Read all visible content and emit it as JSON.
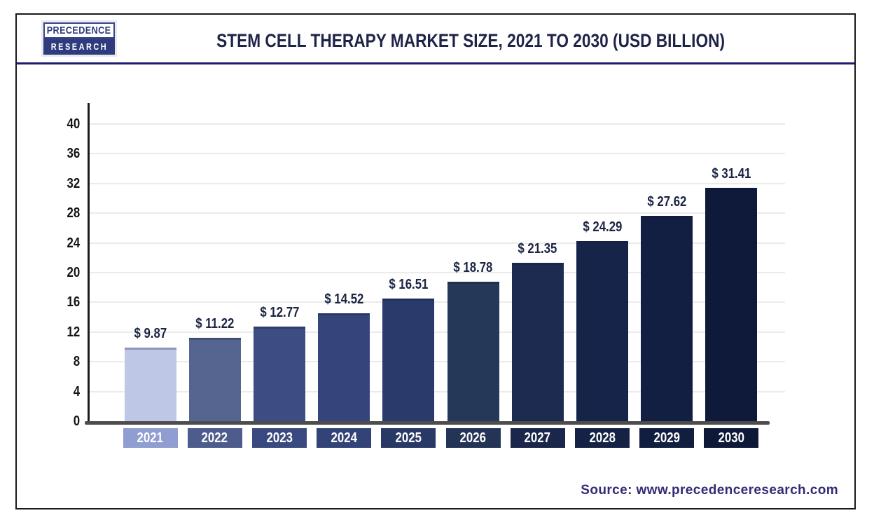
{
  "header": {
    "logo": {
      "line1": "PRECEDENCE",
      "line2": "RESEARCH"
    },
    "title": "STEM CELL THERAPY MARKET SIZE, 2021 TO 2030 (USD BILLION)"
  },
  "footer": {
    "source": "Source: www.precedenceresearch.com"
  },
  "chart_data": {
    "type": "bar",
    "title": "Stem Cell Therapy Market Size, 2021 to 2030 (USD Billion)",
    "categories": [
      "2021",
      "2022",
      "2023",
      "2024",
      "2025",
      "2026",
      "2027",
      "2028",
      "2029",
      "2030"
    ],
    "values": [
      9.87,
      11.22,
      12.77,
      14.52,
      16.51,
      18.78,
      21.35,
      24.29,
      27.62,
      31.41
    ],
    "value_labels": [
      "$ 9.87",
      "$ 11.22",
      "$ 12.77",
      "$ 14.52",
      "$ 16.51",
      "$ 18.78",
      "$ 21.35",
      "$ 24.29",
      "$ 27.62",
      "$ 31.41"
    ],
    "unit": "USD Billion",
    "xlabel": "",
    "ylabel": "",
    "ylim": [
      0,
      40
    ],
    "yticks": [
      0,
      4,
      8,
      12,
      16,
      20,
      24,
      28,
      32,
      36,
      40
    ],
    "grid": true,
    "legend": "none",
    "bar_colors": [
      "#bec7e6",
      "#55658f",
      "#3d4d84",
      "#35457c",
      "#2a3a6b",
      "#263857",
      "#1d2b50",
      "#17244a",
      "#131f42",
      "#0f1a3a"
    ],
    "category_box_colors": [
      "#8f9dd0",
      "#4d5c8c",
      "#3a4a80",
      "#324377",
      "#293966",
      "#243456",
      "#1a274b",
      "#152245",
      "#121e40",
      "#0e1938"
    ],
    "colors": {
      "title_text": "#1e2348",
      "value_label_text": "#1b2443",
      "tick_text": "#141414",
      "category_text": "#ffffff",
      "axis_line": "#4d4d4d",
      "gridline": "#ebebeb",
      "header_divider": "#201d6e",
      "frame_border": "#1a1a1a",
      "source_text": "#322b76",
      "logo_navy": "#2e3c7e",
      "bar_2021_light": "#bec7e6"
    }
  }
}
